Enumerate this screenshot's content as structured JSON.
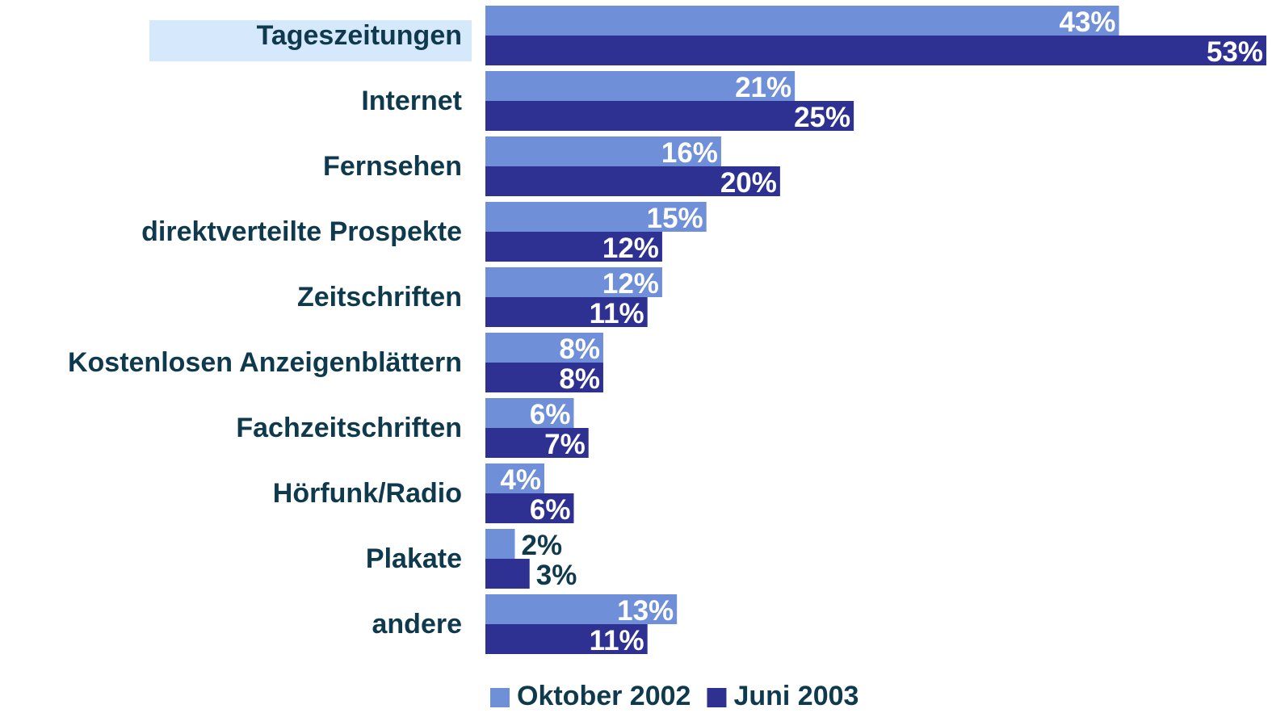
{
  "chart_data": {
    "type": "bar",
    "orientation": "horizontal",
    "categories": [
      "Tageszeitungen",
      "Internet",
      "Fernsehen",
      "direktverteilte Prospekte",
      "Zeitschriften",
      "Kostenlosen Anzeigenblättern",
      "Fachzeitschriften",
      "Hörfunk/Radio",
      "Plakate",
      "andere"
    ],
    "series": [
      {
        "name": "Oktober 2002",
        "color": "#6f8fd8",
        "values": [
          43,
          21,
          16,
          15,
          12,
          8,
          6,
          4,
          2,
          13
        ],
        "value_labels": [
          "43%",
          "21%",
          "16%",
          "15%",
          "12%",
          "8%",
          "6%",
          "4%",
          "2%",
          "13%"
        ]
      },
      {
        "name": "Juni 2003",
        "color": "#2e3192",
        "values": [
          53,
          25,
          20,
          12,
          11,
          8,
          7,
          6,
          3,
          11
        ],
        "value_labels": [
          "53%",
          "25%",
          "20%",
          "12%",
          "11%",
          "8%",
          "7%",
          "6%",
          "3%",
          "11%"
        ]
      }
    ],
    "legend": "bottom"
  }
}
